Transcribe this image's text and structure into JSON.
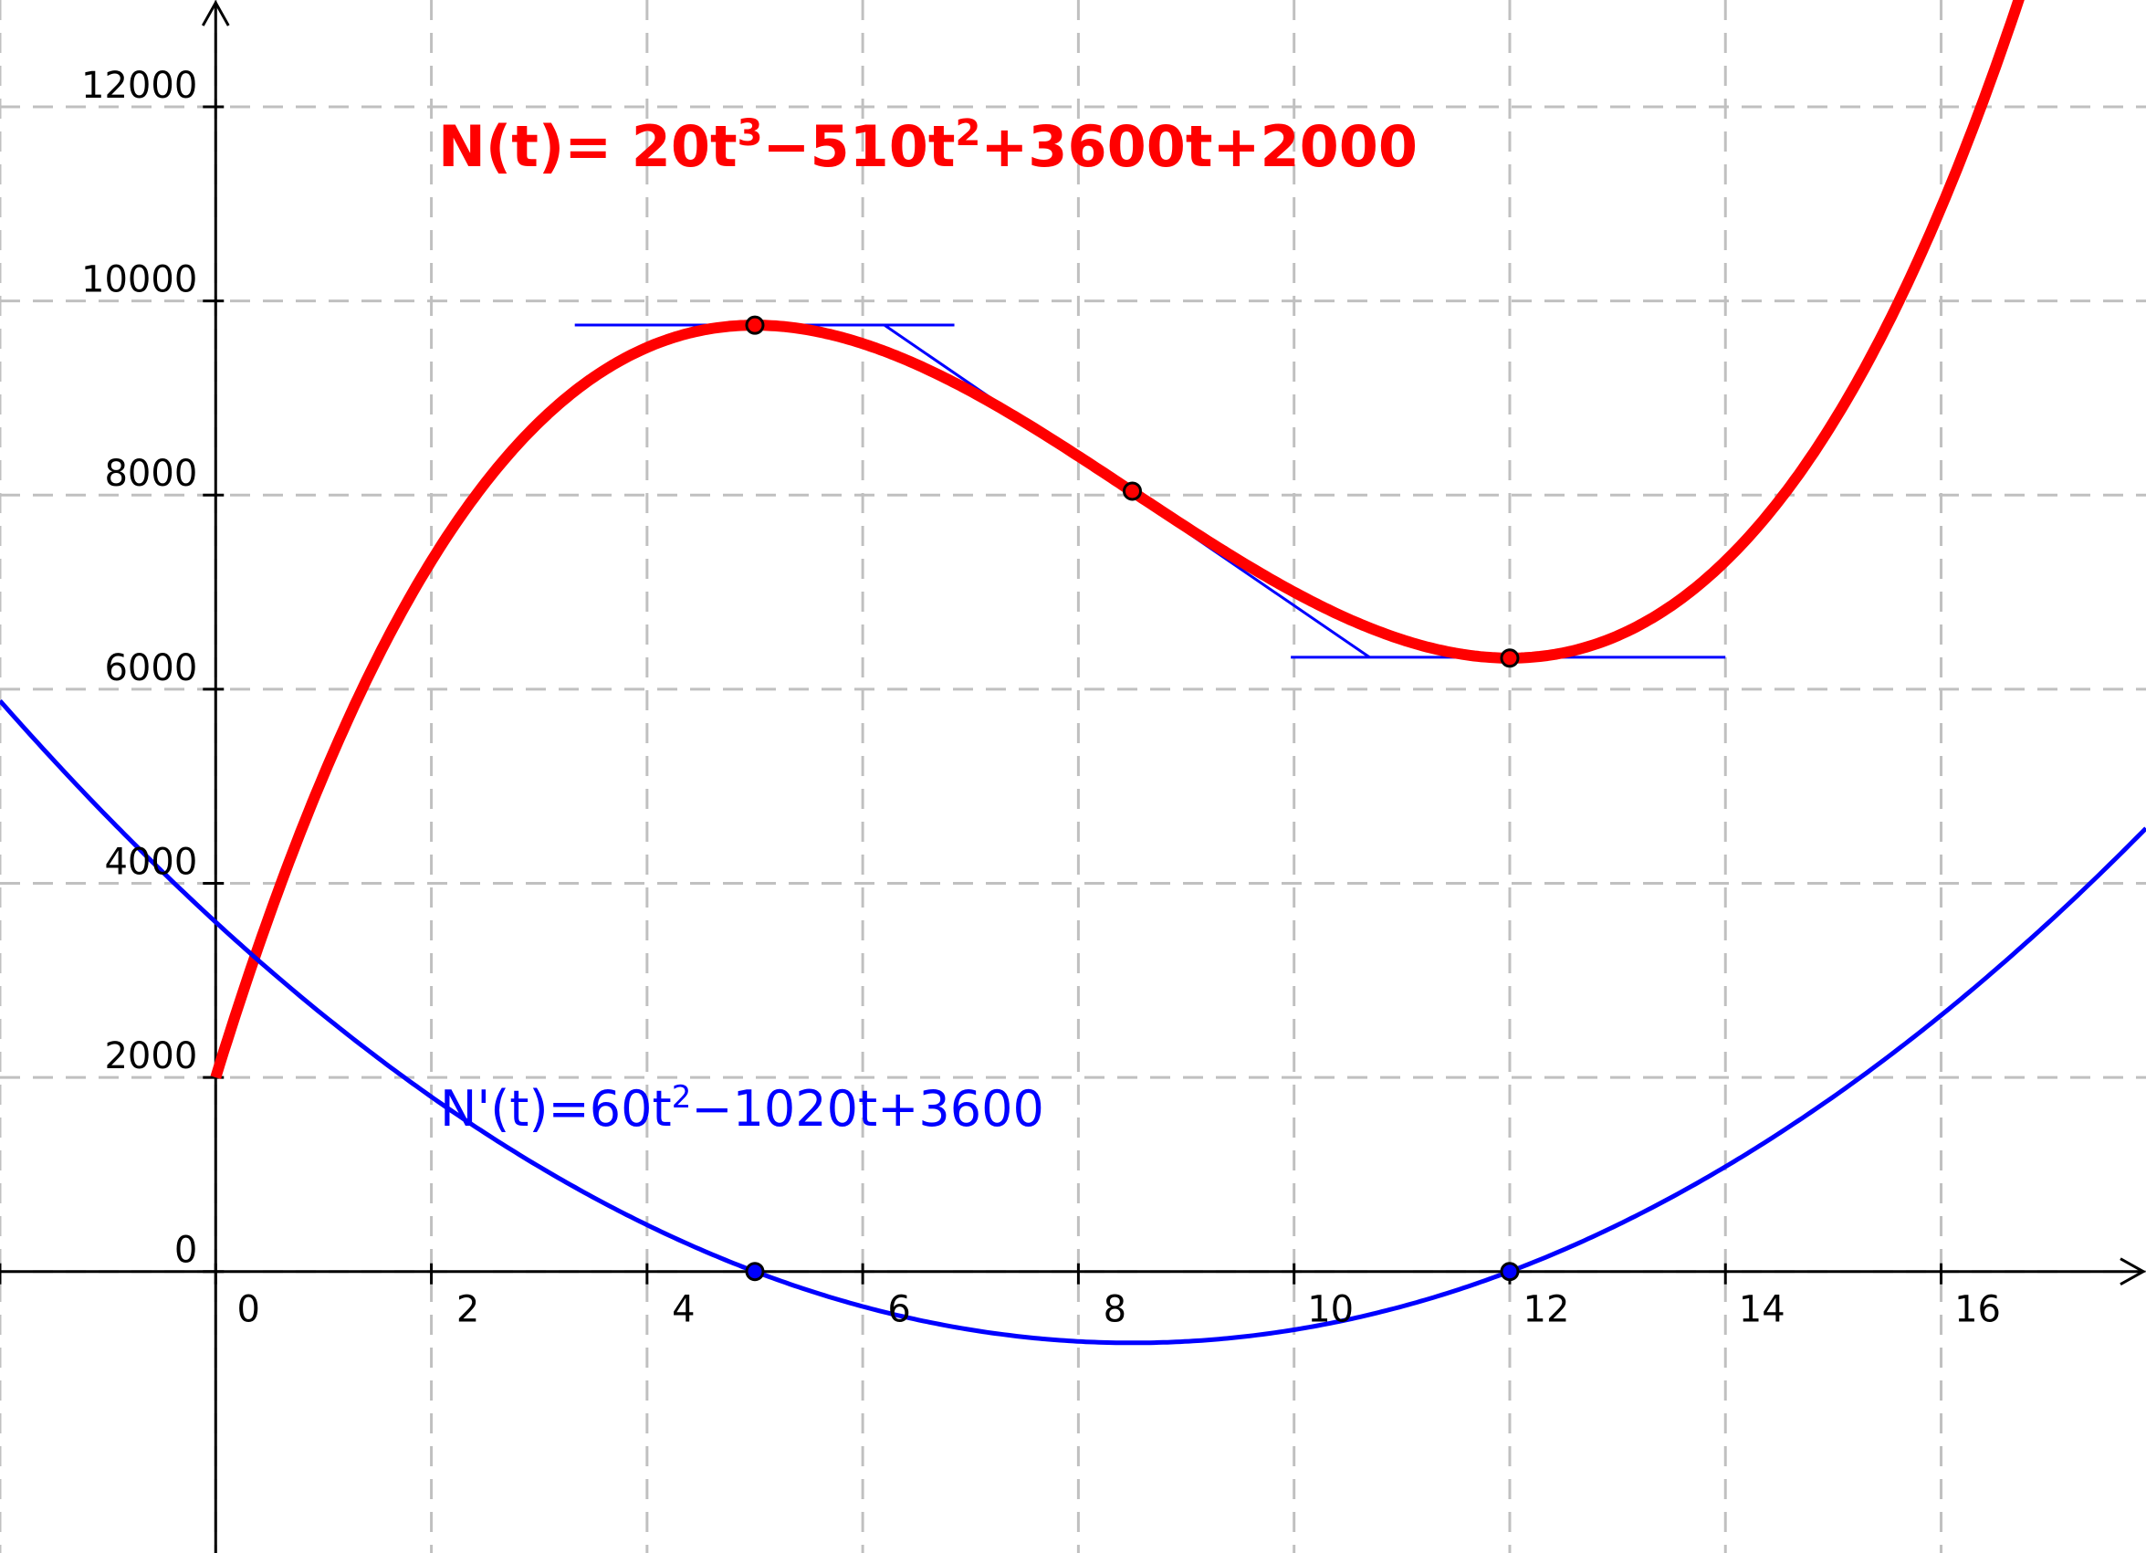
{
  "chart_data": {
    "type": "line",
    "title": "",
    "xlabel": "",
    "ylabel": "",
    "xlim": [
      -2.0,
      17.9
    ],
    "ylim": [
      -2900,
      13100
    ],
    "x_ticks": [
      0,
      2,
      4,
      6,
      8,
      10,
      12,
      14,
      16
    ],
    "x_tick_labels": [
      "0",
      "2",
      "4",
      "6",
      "8",
      "10",
      "12",
      "14",
      "16"
    ],
    "y_ticks": [
      0,
      2000,
      4000,
      6000,
      8000,
      10000,
      12000
    ],
    "y_tick_labels": [
      "0",
      "2000",
      "4000",
      "6000",
      "8000",
      "10000",
      "12000"
    ],
    "grid": true,
    "grid_x": [
      -2,
      0,
      2,
      4,
      6,
      8,
      10,
      12,
      14,
      16
    ],
    "grid_y": [
      0,
      2000,
      4000,
      6000,
      8000,
      10000,
      12000
    ],
    "series": [
      {
        "key": "N",
        "coefficients": [
          20,
          -510,
          3600,
          2000
        ],
        "domain": [
          0,
          17.9
        ],
        "color": "#ff0000",
        "label_parts": [
          "N(t)= 20t",
          "3",
          "−510t",
          "2",
          "+3600t+2000"
        ]
      },
      {
        "key": "dN",
        "coefficients": [
          60,
          -1020,
          3600
        ],
        "domain": [
          -2.0,
          17.9
        ],
        "color": "#0000ff",
        "label_parts": [
          "N'(t)=60t",
          "2",
          "−1020t+3600"
        ]
      }
    ],
    "tangent_lines": [
      {
        "x": [
          3.33,
          6.85
        ],
        "y": [
          9751,
          9751
        ]
      },
      {
        "x": [
          6.2,
          10.7
        ],
        "y": [
          9751,
          6329
        ]
      },
      {
        "x": [
          9.97,
          14.0
        ],
        "y": [
          6329,
          6329
        ]
      }
    ],
    "points": [
      {
        "x": 5.0,
        "y": 9750,
        "on": "N"
      },
      {
        "x": 8.5,
        "y": 8040,
        "on": "N"
      },
      {
        "x": 12.0,
        "y": 6320,
        "on": "N"
      },
      {
        "x": 5.0,
        "y": 0,
        "on": "dN"
      },
      {
        "x": 12.0,
        "y": 0,
        "on": "dN"
      }
    ],
    "colors": {
      "N": "#ff0000",
      "dN": "#0000ff",
      "tangent": "#0000ff",
      "grid": "#c0c0c0"
    }
  }
}
